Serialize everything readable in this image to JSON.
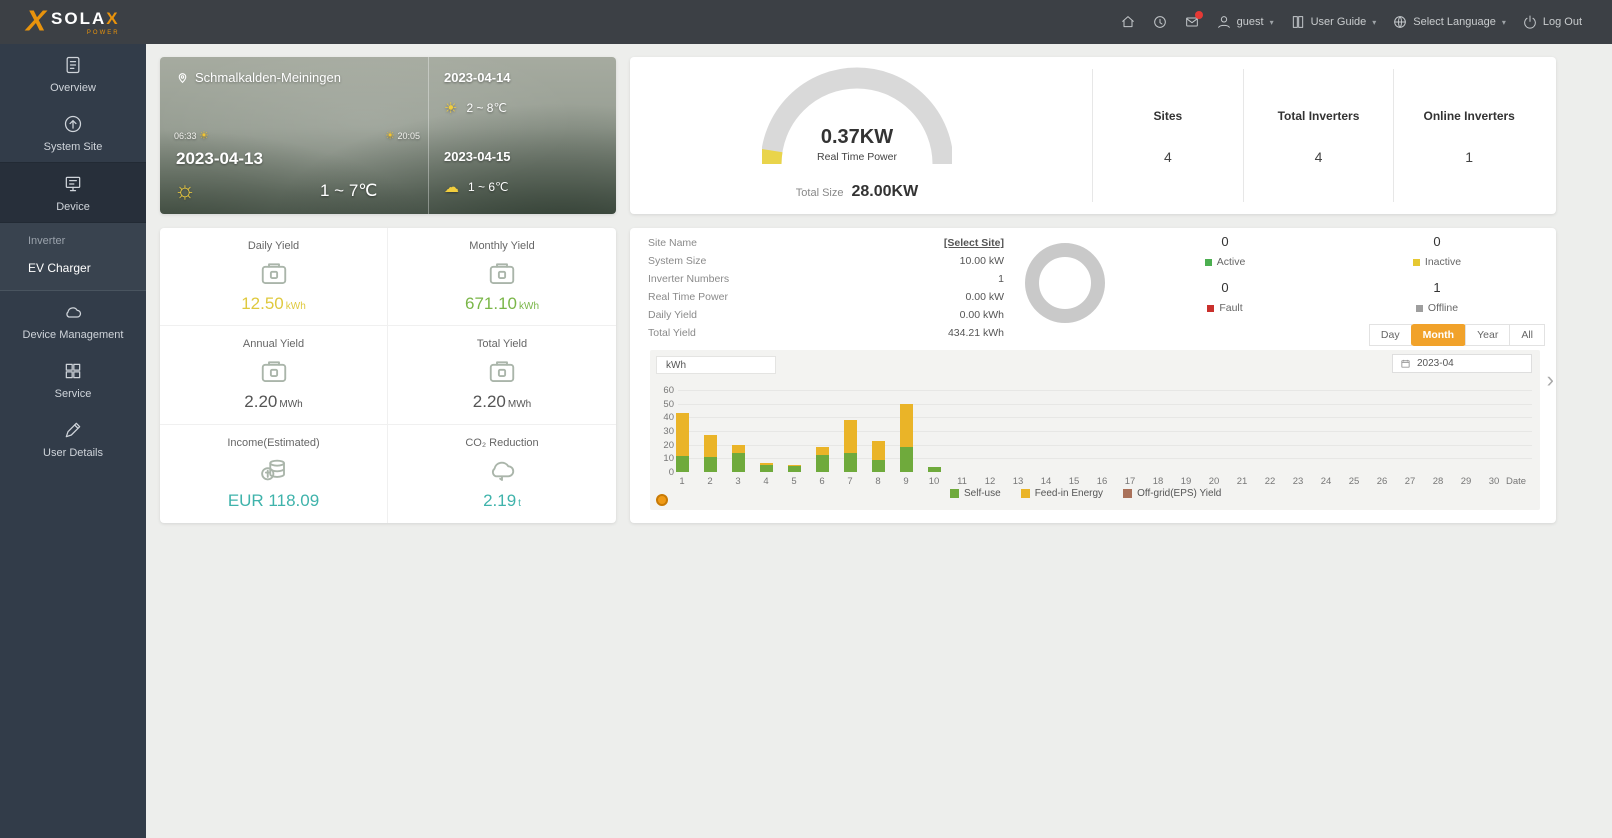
{
  "topbar": {
    "brand": "SOLA",
    "brand_accent": "X",
    "brand_sub": "POWER",
    "user": "guest",
    "user_guide": "User Guide",
    "select_language": "Select Language",
    "log_out": "Log Out"
  },
  "sidebar": {
    "items": [
      {
        "label": "Overview",
        "icon": "overview",
        "active": false
      },
      {
        "label": "System Site",
        "icon": "site",
        "active": false
      },
      {
        "label": "Device",
        "icon": "device",
        "active": true
      },
      {
        "label": "Device Management",
        "icon": "cloud",
        "active": false
      },
      {
        "label": "Service",
        "icon": "service",
        "active": false
      },
      {
        "label": "User Details",
        "icon": "pencil",
        "active": false
      }
    ],
    "submenu": [
      {
        "label": "Inverter",
        "active": false
      },
      {
        "label": "EV Charger",
        "active": true
      }
    ]
  },
  "weather": {
    "location": "Schmalkalden-Meiningen",
    "sunrise": "06:33",
    "sunset": "20:05",
    "today_date": "2023-04-13",
    "today_temp": "1 ~ 7℃",
    "forecast": [
      {
        "date": "2023-04-14",
        "temp": "2 ~ 8℃",
        "icon": "sun"
      },
      {
        "date": "2023-04-15",
        "temp": "1 ~ 6℃",
        "icon": "cloud"
      }
    ]
  },
  "summary": {
    "real_time_power": "0.37KW",
    "real_time_power_label": "Real Time Power",
    "total_size_label": "Total Size",
    "total_size_value": "28.00KW",
    "gauge_color": "#d9d9d9",
    "gauge_accent": "#e9d44b",
    "stats": [
      {
        "label": "Sites",
        "value": "4"
      },
      {
        "label": "Total Inverters",
        "value": "4"
      },
      {
        "label": "Online Inverters",
        "value": "1"
      }
    ]
  },
  "yield_cards": [
    {
      "label": "Daily Yield",
      "value": "12.50",
      "unit": "kWh",
      "color": "#dfc93e",
      "icon": "battery"
    },
    {
      "label": "Monthly Yield",
      "value": "671.10",
      "unit": "kWh",
      "color": "#7ab648",
      "icon": "battery"
    },
    {
      "label": "Annual Yield",
      "value": "2.20",
      "unit": "MWh",
      "color": "#555555",
      "icon": "battery"
    },
    {
      "label": "Total Yield",
      "value": "2.20",
      "unit": "MWh",
      "color": "#555555",
      "icon": "battery"
    },
    {
      "label": "Income(Estimated)",
      "value": "EUR 118.09",
      "unit": "",
      "color": "#3fb3ab",
      "icon": "coins"
    },
    {
      "label": "CO₂ Reduction",
      "value": "2.19",
      "unit": "t",
      "color": "#3fb3ab",
      "icon": "co2"
    }
  ],
  "site_panel": {
    "info": [
      {
        "label": "Site Name",
        "value": "[Select Site]",
        "link": true
      },
      {
        "label": "System Size",
        "value": "10.00 kW",
        "link": false
      },
      {
        "label": "Inverter Numbers",
        "value": "1",
        "link": false
      },
      {
        "label": "Real Time Power",
        "value": "0.00 kW",
        "link": false
      },
      {
        "label": "Daily Yield",
        "value": "0.00 kWh",
        "link": false
      },
      {
        "label": "Total Yield",
        "value": "434.21 kWh",
        "link": false
      }
    ],
    "status": [
      {
        "label": "Active",
        "value": "0",
        "color": "#4caf50"
      },
      {
        "label": "Inactive",
        "value": "0",
        "color": "#e6c832"
      },
      {
        "label": "Fault",
        "value": "0",
        "color": "#c9302c"
      },
      {
        "label": "Offline",
        "value": "1",
        "color": "#9e9e9e"
      }
    ],
    "tabs": [
      "Day",
      "Month",
      "Year",
      "All"
    ],
    "active_tab": "Month",
    "unit_select": "kWh",
    "date_picker": "2023-04"
  },
  "chart_data": {
    "type": "bar",
    "stacked": true,
    "x": [
      1,
      2,
      3,
      4,
      5,
      6,
      7,
      8,
      9,
      10,
      11,
      12,
      13,
      14,
      15,
      16,
      17,
      18,
      19,
      20,
      21,
      22,
      23,
      24,
      25,
      26,
      27,
      28,
      29,
      30
    ],
    "xlabel": "Date",
    "ylabel": "kWh",
    "ylim": [
      0,
      60
    ],
    "yticks": [
      0,
      10,
      20,
      30,
      40,
      50,
      60
    ],
    "grid": true,
    "legend_position": "bottom",
    "series": [
      {
        "name": "Self-use",
        "color": "#6faa3c",
        "values": [
          12,
          11,
          14,
          5,
          4.5,
          12.5,
          14,
          9,
          18,
          4,
          0,
          0,
          0,
          0,
          0,
          0,
          0,
          0,
          0,
          0,
          0,
          0,
          0,
          0,
          0,
          0,
          0,
          0,
          0,
          0
        ]
      },
      {
        "name": "Feed-in Energy",
        "color": "#eab428",
        "values": [
          31,
          16,
          6,
          1.5,
          0.5,
          5.5,
          24,
          14,
          32,
          0,
          0,
          0,
          0,
          0,
          0,
          0,
          0,
          0,
          0,
          0,
          0,
          0,
          0,
          0,
          0,
          0,
          0,
          0,
          0,
          0
        ]
      },
      {
        "name": "Off-grid(EPS) Yield",
        "color": "#a9715a",
        "values": [
          0,
          0,
          0,
          0,
          0,
          0,
          0,
          0,
          0,
          0,
          0,
          0,
          0,
          0,
          0,
          0,
          0,
          0,
          0,
          0,
          0,
          0,
          0,
          0,
          0,
          0,
          0,
          0,
          0,
          0
        ]
      }
    ]
  }
}
